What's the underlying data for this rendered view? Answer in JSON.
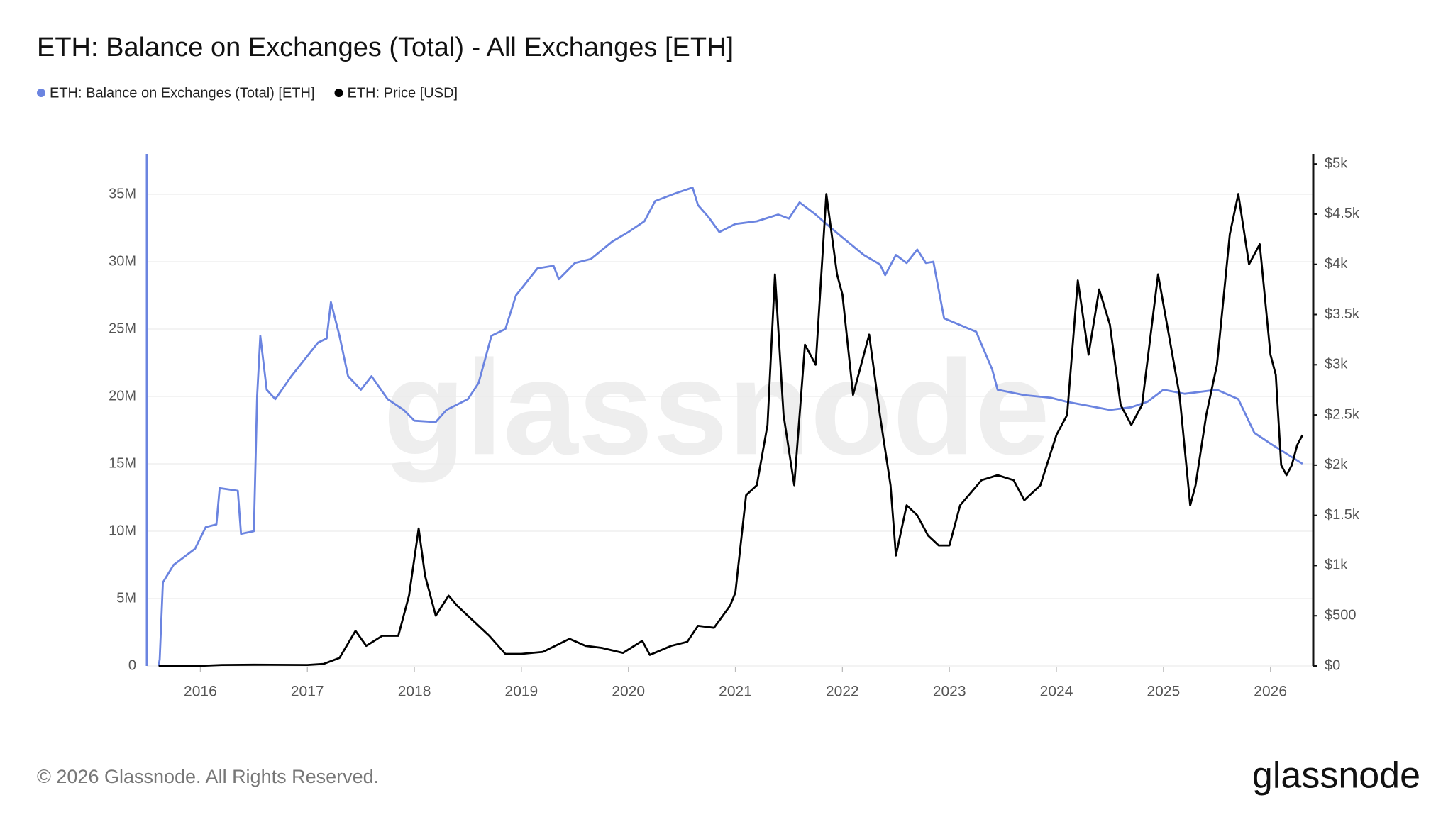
{
  "chart_data": {
    "type": "line",
    "title": "ETH: Balance on Exchanges (Total) - All Exchanges [ETH]",
    "watermark": "glassnode",
    "footer": "© 2026 Glassnode. All Rights Reserved.",
    "brand": "glassnode",
    "legend": "top-left",
    "grid": true,
    "xlim": [
      2015.5,
      2026.4
    ],
    "xticks": [
      2016,
      2017,
      2018,
      2019,
      2020,
      2021,
      2022,
      2023,
      2024,
      2025,
      2026
    ],
    "ylim": [
      0,
      38000000
    ],
    "yticks": [
      {
        "value": 0,
        "label": "0"
      },
      {
        "value": 5000000,
        "label": "5M"
      },
      {
        "value": 10000000,
        "label": "10M"
      },
      {
        "value": 15000000,
        "label": "15M"
      },
      {
        "value": 20000000,
        "label": "20M"
      },
      {
        "value": 25000000,
        "label": "25M"
      },
      {
        "value": 30000000,
        "label": "30M"
      },
      {
        "value": 35000000,
        "label": "35M"
      }
    ],
    "y2lim": [
      0,
      5100
    ],
    "y2ticks": [
      {
        "value": 0,
        "label": "$0"
      },
      {
        "value": 500,
        "label": "$500"
      },
      {
        "value": 1000,
        "label": "$1k"
      },
      {
        "value": 1500,
        "label": "$1.5k"
      },
      {
        "value": 2000,
        "label": "$2k"
      },
      {
        "value": 2500,
        "label": "$2.5k"
      },
      {
        "value": 3000,
        "label": "$3k"
      },
      {
        "value": 3500,
        "label": "$3.5k"
      },
      {
        "value": 4000,
        "label": "$4k"
      },
      {
        "value": 4500,
        "label": "$4.5k"
      },
      {
        "value": 5000,
        "label": "$5k"
      }
    ],
    "series": [
      {
        "name": "ETH: Balance on Exchanges (Total) [ETH]",
        "color": "#6b84e0",
        "x": [
          2015.61,
          2015.62,
          2015.65,
          2015.75,
          2015.95,
          2016.05,
          2016.15,
          2016.18,
          2016.35,
          2016.38,
          2016.5,
          2016.53,
          2016.56,
          2016.62,
          2016.7,
          2016.85,
          2017.0,
          2017.1,
          2017.18,
          2017.22,
          2017.3,
          2017.38,
          2017.5,
          2017.6,
          2017.75,
          2017.9,
          2018.0,
          2018.2,
          2018.3,
          2018.5,
          2018.6,
          2018.72,
          2018.85,
          2018.95,
          2019.15,
          2019.3,
          2019.35,
          2019.5,
          2019.65,
          2019.85,
          2020.0,
          2020.15,
          2020.25,
          2020.45,
          2020.6,
          2020.65,
          2020.75,
          2020.85,
          2021.0,
          2021.2,
          2021.4,
          2021.5,
          2021.6,
          2021.75,
          2021.85,
          2022.0,
          2022.2,
          2022.35,
          2022.4,
          2022.5,
          2022.6,
          2022.7,
          2022.78,
          2022.85,
          2022.95,
          2023.1,
          2023.25,
          2023.4,
          2023.45,
          2023.7,
          2023.95,
          2024.1,
          2024.3,
          2024.5,
          2024.7,
          2024.85,
          2025.0,
          2025.2,
          2025.3,
          2025.5,
          2025.7,
          2025.85,
          2026.0,
          2026.1,
          2026.2,
          2026.3
        ],
        "values": [
          0,
          500000,
          6200000,
          7500000,
          8700000,
          10300000,
          10500000,
          13200000,
          13000000,
          9800000,
          10000000,
          20000000,
          24500000,
          20500000,
          19800000,
          21500000,
          23000000,
          24000000,
          24300000,
          27000000,
          24500000,
          21500000,
          20500000,
          21500000,
          19800000,
          19000000,
          18200000,
          18100000,
          19000000,
          19800000,
          21000000,
          24500000,
          25000000,
          27500000,
          29500000,
          29700000,
          28700000,
          29900000,
          30200000,
          31500000,
          32200000,
          33000000,
          34500000,
          35100000,
          35500000,
          34200000,
          33300000,
          32200000,
          32800000,
          33000000,
          33500000,
          33200000,
          34400000,
          33500000,
          32800000,
          31800000,
          30500000,
          29800000,
          29000000,
          30500000,
          29900000,
          30900000,
          29900000,
          30000000,
          25800000,
          25300000,
          24800000,
          22000000,
          20500000,
          20100000,
          19900000,
          19600000,
          19300000,
          19000000,
          19200000,
          19600000,
          20500000,
          20200000,
          20300000,
          20500000,
          19800000,
          17300000,
          16500000,
          16000000,
          15500000,
          15000000
        ]
      },
      {
        "name": "ETH: Price [USD]",
        "color": "#000000",
        "axis": "y2",
        "x": [
          2015.61,
          2016.0,
          2016.2,
          2016.5,
          2017.0,
          2017.15,
          2017.3,
          2017.45,
          2017.55,
          2017.7,
          2017.85,
          2017.95,
          2018.04,
          2018.1,
          2018.2,
          2018.32,
          2018.4,
          2018.55,
          2018.7,
          2018.85,
          2019.0,
          2019.2,
          2019.45,
          2019.6,
          2019.75,
          2019.95,
          2020.13,
          2020.2,
          2020.4,
          2020.55,
          2020.65,
          2020.8,
          2020.95,
          2021.0,
          2021.1,
          2021.2,
          2021.3,
          2021.37,
          2021.45,
          2021.55,
          2021.65,
          2021.75,
          2021.85,
          2021.95,
          2022.0,
          2022.1,
          2022.25,
          2022.35,
          2022.45,
          2022.5,
          2022.6,
          2022.7,
          2022.8,
          2022.9,
          2023.0,
          2023.1,
          2023.3,
          2023.45,
          2023.6,
          2023.7,
          2023.85,
          2024.0,
          2024.1,
          2024.2,
          2024.3,
          2024.4,
          2024.5,
          2024.6,
          2024.7,
          2024.8,
          2024.95,
          2025.05,
          2025.15,
          2025.25,
          2025.3,
          2025.4,
          2025.5,
          2025.62,
          2025.7,
          2025.8,
          2025.9,
          2026.0,
          2026.05,
          2026.1,
          2026.15,
          2026.2,
          2026.25,
          2026.3
        ],
        "values": [
          1,
          1,
          10,
          12,
          10,
          20,
          80,
          350,
          200,
          300,
          300,
          700,
          1370,
          900,
          500,
          700,
          600,
          450,
          300,
          120,
          120,
          140,
          270,
          200,
          180,
          130,
          250,
          110,
          200,
          240,
          400,
          380,
          600,
          730,
          1700,
          1800,
          2400,
          3900,
          2500,
          1800,
          3200,
          3000,
          4700,
          3900,
          3700,
          2700,
          3300,
          2500,
          1800,
          1100,
          1600,
          1500,
          1300,
          1200,
          1200,
          1600,
          1850,
          1900,
          1850,
          1650,
          1800,
          2300,
          2500,
          3840,
          3100,
          3750,
          3400,
          2600,
          2400,
          2600,
          3900,
          3300,
          2700,
          1600,
          1800,
          2500,
          3000,
          4300,
          4700,
          4000,
          4200,
          3100,
          2900,
          2000,
          1900,
          2000,
          2200,
          2300
        ]
      }
    ]
  }
}
